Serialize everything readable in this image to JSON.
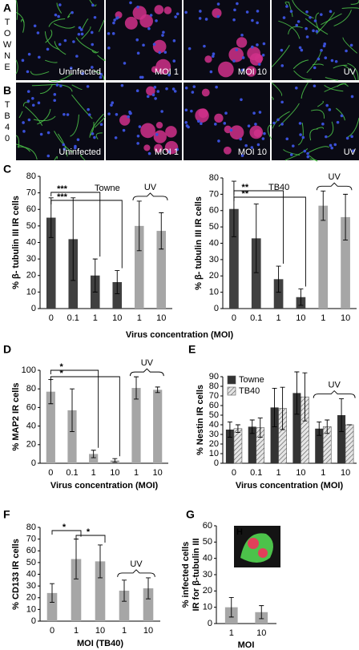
{
  "figure": {
    "panels": [
      {
        "label": "A",
        "side_label": "TOWNE",
        "images": [
          "Uninfected",
          "MOI 1",
          "MOI 10",
          "UV"
        ]
      },
      {
        "label": "B",
        "side_label": "TB40",
        "images": [
          "Uninfected",
          "MOI 1",
          "MOI 10",
          "UV"
        ]
      }
    ],
    "inset_label": "H"
  },
  "chart_data": [
    {
      "type": "bar",
      "panel_label": "C",
      "title": "Towne",
      "ylabel": "% β- tubulin III IR cells",
      "xlabel": "Virus concentration (MOI)",
      "categories": [
        "0",
        "0.1",
        "1",
        "10",
        "1",
        "10"
      ],
      "series": [
        {
          "values": [
            55,
            42,
            20,
            16,
            50,
            47
          ],
          "errors": [
            12,
            25,
            10,
            7,
            15,
            11
          ],
          "colors": [
            "#404040",
            "#404040",
            "#404040",
            "#404040",
            "#a6a6a6",
            "#a6a6a6"
          ]
        }
      ],
      "ylim": [
        0,
        80
      ],
      "yticks": [
        0,
        10,
        20,
        30,
        40,
        50,
        60,
        70,
        80
      ],
      "significance": [
        "***",
        "***"
      ],
      "group_label": "UV"
    },
    {
      "type": "bar",
      "title": "TB40",
      "ylabel": "% β- tubulin III IR cells",
      "categories": [
        "0",
        "0.1",
        "1",
        "10",
        "1",
        "10"
      ],
      "series": [
        {
          "values": [
            61,
            43,
            18,
            7,
            63,
            56
          ],
          "errors": [
            17,
            21,
            8,
            5,
            9,
            14
          ],
          "colors": [
            "#404040",
            "#404040",
            "#404040",
            "#404040",
            "#a6a6a6",
            "#a6a6a6"
          ]
        }
      ],
      "ylim": [
        0,
        80
      ],
      "yticks": [
        0,
        10,
        20,
        30,
        40,
        50,
        60,
        70,
        80
      ],
      "significance": [
        "**",
        "**"
      ],
      "group_label": "UV"
    },
    {
      "type": "bar",
      "panel_label": "D",
      "ylabel": "% MAP2 IR cells",
      "xlabel": "Virus concentration (MOI)",
      "categories": [
        "0",
        "0.1",
        "1",
        "10",
        "1",
        "10"
      ],
      "series": [
        {
          "values": [
            77,
            57,
            10,
            3,
            81,
            79
          ],
          "errors": [
            13,
            23,
            4,
            2,
            12,
            3
          ],
          "color": "#a6a6a6"
        }
      ],
      "ylim": [
        0,
        100
      ],
      "yticks": [
        0,
        20,
        40,
        60,
        80,
        100
      ],
      "significance": [
        "*",
        "*"
      ],
      "group_label": "UV"
    },
    {
      "type": "bar",
      "panel_label": "E",
      "ylabel": "% Nestin IR cells",
      "xlabel": "Virus concentration (MOI)",
      "categories": [
        "0",
        "0.1",
        "1",
        "10",
        "1",
        "10"
      ],
      "series": [
        {
          "name": "Towne",
          "values": [
            35,
            38,
            58,
            73,
            36,
            50
          ],
          "errors": [
            8,
            7,
            20,
            22,
            7,
            17
          ],
          "color": "#333333"
        },
        {
          "name": "TB40",
          "values": [
            36,
            37,
            57,
            69,
            38,
            40
          ],
          "errors": [
            4,
            10,
            22,
            25,
            7,
            0
          ],
          "color": "#e6e6e6",
          "pattern": "hatch"
        }
      ],
      "ylim": [
        0,
        90
      ],
      "yticks": [
        0,
        10,
        20,
        30,
        40,
        50,
        60,
        70,
        80,
        90
      ],
      "group_label": "UV",
      "legend": "upper left"
    },
    {
      "type": "bar",
      "panel_label": "F",
      "ylabel": "% CD133 IR cells",
      "xlabel": "MOI (TB40)",
      "categories": [
        "0",
        "1",
        "10",
        "1",
        "10"
      ],
      "series": [
        {
          "values": [
            24,
            53,
            51,
            26,
            28
          ],
          "errors": [
            8,
            17,
            14,
            9,
            9
          ],
          "color": "#a6a6a6"
        }
      ],
      "ylim": [
        0,
        80
      ],
      "yticks": [
        0,
        10,
        20,
        30,
        40,
        50,
        60,
        70,
        80
      ],
      "significance": [
        "*",
        "*"
      ],
      "group_label": "UV"
    },
    {
      "type": "bar",
      "panel_label": "G",
      "ylabel": [
        "% infected cells",
        "IR for β-tubulin III"
      ],
      "xlabel": "MOI",
      "categories": [
        "1",
        "10"
      ],
      "series": [
        {
          "values": [
            10,
            7
          ],
          "errors": [
            6,
            4
          ],
          "color": "#a6a6a6"
        }
      ],
      "ylim": [
        0,
        60
      ],
      "yticks": [
        0,
        10,
        20,
        30,
        40,
        50,
        60
      ]
    }
  ]
}
